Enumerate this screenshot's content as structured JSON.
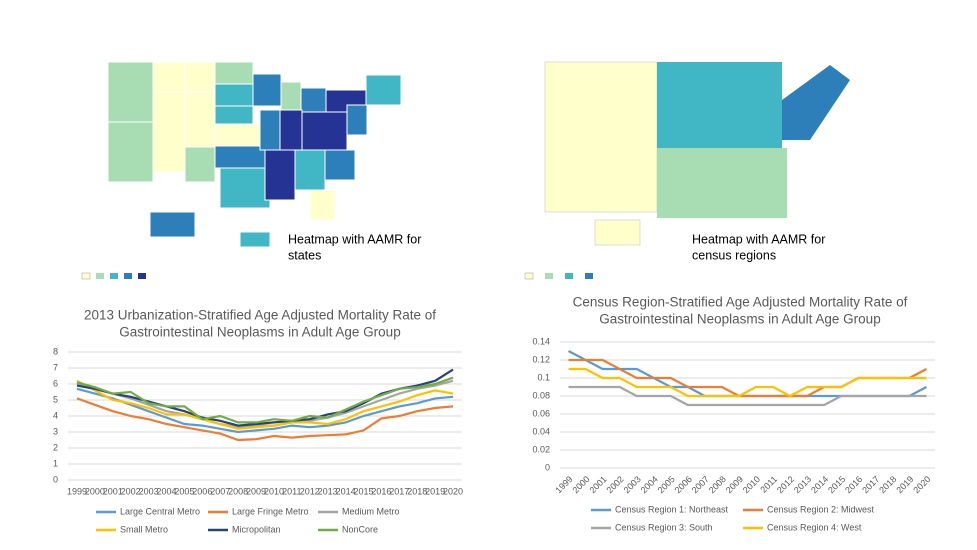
{
  "maps": [
    {
      "caption": [
        "Heatmap with AAMR for",
        "states"
      ]
    },
    {
      "caption": [
        "Heatmap with AAMR for",
        "census regions"
      ]
    }
  ],
  "chart_data": [
    {
      "type": "line",
      "title": [
        "2013 Urbanization-Stratified Age Adjusted Mortality Rate of",
        "Gastrointestinal Neoplasms in Adult Age Group"
      ],
      "categories": [
        "1999",
        "2000",
        "2001",
        "2002",
        "2003",
        "2004",
        "2005",
        "2006",
        "2007",
        "2008",
        "2009",
        "2010",
        "2011",
        "2012",
        "2013",
        "2014",
        "2015",
        "2016",
        "2017",
        "2018",
        "2019",
        "2020"
      ],
      "ylim": [
        0,
        8
      ],
      "yticks": [
        0,
        1,
        2,
        3,
        4,
        5,
        6,
        7,
        8
      ],
      "grid": true,
      "series": [
        {
          "name": "Large Central Metro",
          "color": "#5b9bd5",
          "values": [
            5.7,
            5.4,
            5.1,
            4.7,
            4.3,
            3.9,
            3.5,
            3.4,
            3.2,
            3.0,
            3.1,
            3.2,
            3.4,
            3.3,
            3.4,
            3.6,
            4.0,
            4.3,
            4.6,
            4.8,
            5.1,
            5.2
          ]
        },
        {
          "name": "Large Fringe Metro",
          "color": "#ed7d31",
          "values": [
            5.1,
            4.7,
            4.3,
            4.0,
            3.8,
            3.5,
            3.3,
            3.1,
            2.9,
            2.5,
            2.55,
            2.75,
            2.65,
            2.75,
            2.8,
            2.85,
            3.1,
            3.85,
            4.0,
            4.3,
            4.5,
            4.6
          ]
        },
        {
          "name": "Medium Metro",
          "color": "#a5a5a5",
          "values": [
            6.0,
            5.7,
            5.4,
            5.1,
            4.7,
            4.3,
            4.1,
            3.8,
            3.5,
            3.3,
            3.4,
            3.4,
            3.6,
            3.7,
            3.9,
            4.2,
            4.6,
            5.0,
            5.4,
            5.7,
            5.9,
            6.2
          ]
        },
        {
          "name": "Small Metro",
          "color": "#ffc000",
          "values": [
            6.2,
            5.6,
            5.0,
            4.8,
            4.5,
            4.1,
            4.1,
            3.8,
            3.5,
            3.2,
            3.3,
            3.4,
            3.6,
            3.6,
            3.5,
            3.8,
            4.3,
            4.6,
            4.9,
            5.3,
            5.6,
            5.4
          ]
        },
        {
          "name": "Micropolitan",
          "color": "#264478",
          "values": [
            5.9,
            5.7,
            5.4,
            5.2,
            4.9,
            4.6,
            4.3,
            3.9,
            3.7,
            3.4,
            3.5,
            3.6,
            3.7,
            3.8,
            4.1,
            4.3,
            4.8,
            5.4,
            5.7,
            5.9,
            6.2,
            6.9
          ]
        },
        {
          "name": "NonCore",
          "color": "#70ad47",
          "values": [
            6.1,
            5.8,
            5.4,
            5.5,
            4.8,
            4.6,
            4.6,
            3.8,
            4.0,
            3.6,
            3.6,
            3.8,
            3.7,
            4.0,
            3.9,
            4.4,
            4.9,
            5.3,
            5.7,
            5.8,
            6.0,
            6.4
          ]
        }
      ]
    },
    {
      "type": "line",
      "title": [
        "Census Region-Stratified Age Adjusted Mortality Rate of",
        "Gastrointestinal Neoplasms in Adult Age Group"
      ],
      "categories": [
        "1999",
        "2000",
        "2001",
        "2002",
        "2003",
        "2004",
        "2005",
        "2006",
        "2007",
        "2008",
        "2009",
        "2010",
        "2011",
        "2012",
        "2013",
        "2014",
        "2015",
        "2016",
        "2017",
        "2018",
        "2019",
        "2020"
      ],
      "ylim": [
        0,
        0.14
      ],
      "yticks": [
        0,
        0.02,
        0.04,
        0.06,
        0.08,
        0.1,
        0.12,
        0.14
      ],
      "grid": true,
      "series": [
        {
          "name": "Census Region 1: Northeast",
          "color": "#5b9bd5",
          "values": [
            0.13,
            0.12,
            0.11,
            0.11,
            0.11,
            0.1,
            0.09,
            0.09,
            0.08,
            0.08,
            0.08,
            0.08,
            0.08,
            0.08,
            0.08,
            0.08,
            0.08,
            0.08,
            0.08,
            0.08,
            0.08,
            0.09
          ]
        },
        {
          "name": "Census Region 2: Midwest",
          "color": "#ed7d31",
          "values": [
            0.12,
            0.12,
            0.12,
            0.11,
            0.1,
            0.1,
            0.1,
            0.09,
            0.09,
            0.09,
            0.08,
            0.08,
            0.08,
            0.08,
            0.08,
            0.09,
            0.09,
            0.1,
            0.1,
            0.1,
            0.1,
            0.11
          ]
        },
        {
          "name": "Census Region 3: South",
          "color": "#a5a5a5",
          "values": [
            0.09,
            0.09,
            0.09,
            0.09,
            0.08,
            0.08,
            0.08,
            0.07,
            0.07,
            0.07,
            0.07,
            0.07,
            0.07,
            0.07,
            0.07,
            0.07,
            0.08,
            0.08,
            0.08,
            0.08,
            0.08,
            0.08
          ]
        },
        {
          "name": "Census Region 4: West",
          "color": "#ffc000",
          "values": [
            0.11,
            0.11,
            0.1,
            0.1,
            0.09,
            0.09,
            0.09,
            0.08,
            0.08,
            0.08,
            0.08,
            0.09,
            0.09,
            0.08,
            0.09,
            0.09,
            0.09,
            0.1,
            0.1,
            0.1,
            0.1,
            0.1
          ]
        }
      ]
    }
  ]
}
